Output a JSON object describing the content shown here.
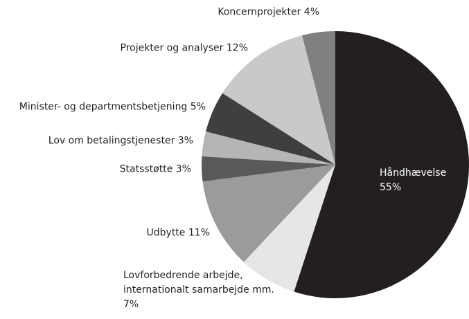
{
  "chart_data": {
    "type": "pie",
    "categories": [
      "Håndhævelse",
      "Lovforbedrende arbejde, internationalt samarbejde mm.",
      "Udbytte",
      "Statsstøtte",
      "Lov om betalingstjenester",
      "Minister- og departmentsbetjening",
      "Projekter og analyser",
      "Koncernprojekter"
    ],
    "values": [
      55,
      7,
      11,
      3,
      3,
      5,
      12,
      4
    ],
    "value_labels": [
      "55%",
      "7%",
      "11%",
      "3%",
      "3%",
      "5%",
      "12%",
      "4%"
    ],
    "colors": [
      "#231f20",
      "#e6e6e6",
      "#9b9b9b",
      "#595959",
      "#b5b5b5",
      "#3f3f3f",
      "#c9c9c9",
      "#808080"
    ]
  }
}
